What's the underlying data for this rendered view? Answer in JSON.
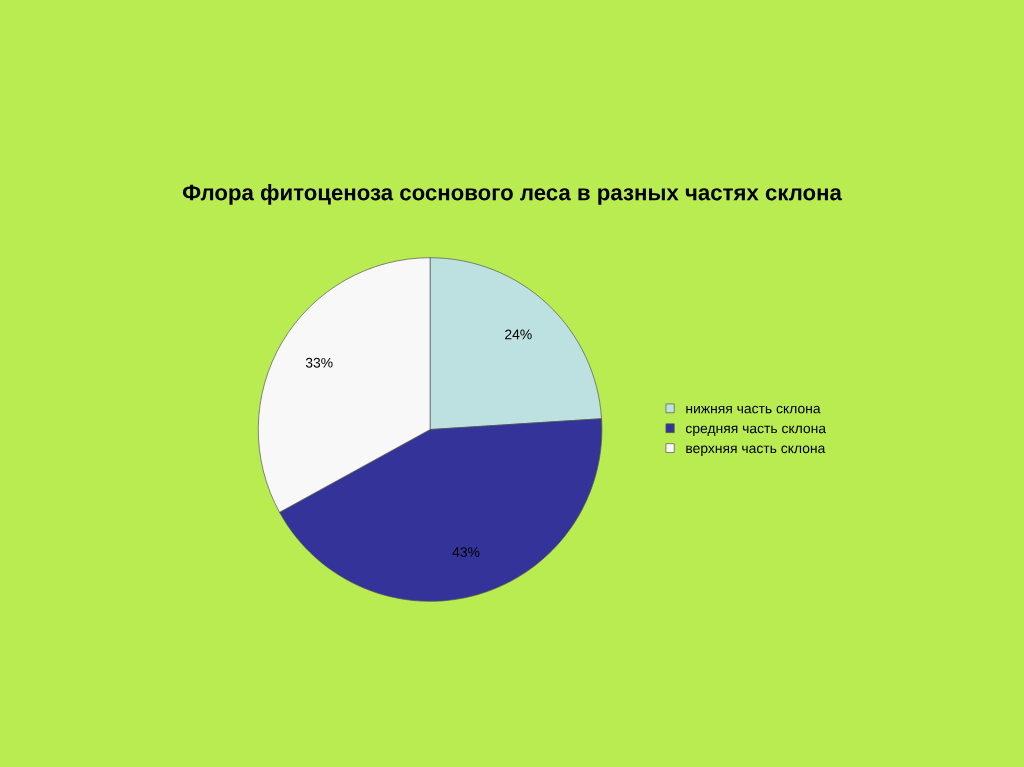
{
  "chart_data": {
    "type": "pie",
    "title": "Флора фитоценоза соснового леса в разных частях склона",
    "categories": [
      "нижняя часть склона",
      "средняя часть склона",
      "верхняя часть склона"
    ],
    "values": [
      24,
      43,
      33
    ],
    "colors": [
      "#bde0e0",
      "#333399",
      "#f8f8f8"
    ],
    "value_labels": [
      "24%",
      "43%",
      "33%"
    ],
    "legend": "right"
  }
}
